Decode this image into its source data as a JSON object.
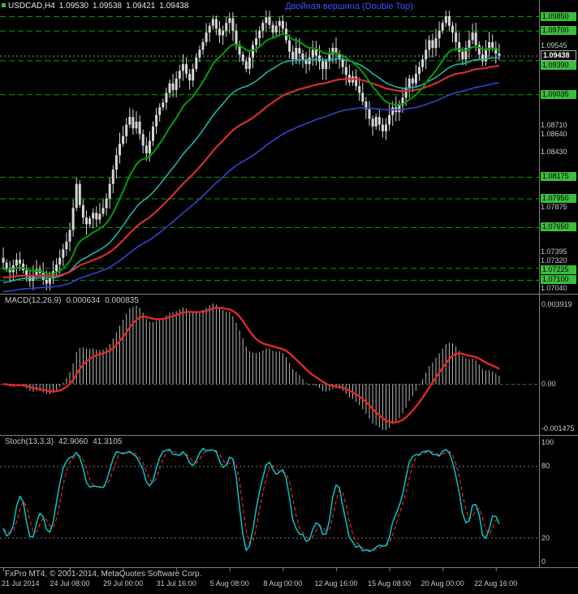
{
  "header": {
    "symbol": "USDCAD,H4",
    "open": "1.09530",
    "high": "1.09538",
    "low": "1.09421",
    "close": "1.09438",
    "annotation": "Двойная вершина (Double Top)"
  },
  "macd_header": {
    "label": "MACD(12,26,9)",
    "main": "0.000634",
    "signal": "0.000835"
  },
  "stoch_header": {
    "label": "Stoch(13,3,3)",
    "main": "42.9060",
    "signal": "41.3105"
  },
  "footer": {
    "copyright": "FxPro MT4, © 2001-2014, MetaQuotes Software Corp."
  },
  "colors": {
    "background": "#000000",
    "divider_silver": "#808080",
    "candle": "#D6D6D6",
    "level_green": "#00A000",
    "badge_green": "#3CBC3C",
    "text_silver": "#C8C8C8",
    "annotation_blue": "#3A52FC",
    "macd_hist": "#B9B9B9",
    "signal_red": "#E02828",
    "stoch_main": "#00C8C8",
    "bid_line": "#909090"
  },
  "price_axis": {
    "labels": [
      {
        "text": "1.09850",
        "value": 1.0985,
        "style": "level"
      },
      {
        "text": "1.09700",
        "value": 1.097,
        "style": "level"
      },
      {
        "text": "1.09545",
        "value": 1.09545,
        "style": "tick"
      },
      {
        "text": "1.09438",
        "value": 1.09438,
        "style": "current"
      },
      {
        "text": "1.09390",
        "value": 1.0939,
        "style": "level"
      },
      {
        "text": "1.09035",
        "value": 1.09035,
        "style": "level"
      },
      {
        "text": "1.08710",
        "value": 1.0871,
        "style": "tick"
      },
      {
        "text": "1.08640",
        "value": 1.0864,
        "style": "tick"
      },
      {
        "text": "1.08430",
        "value": 1.0843,
        "style": "tick"
      },
      {
        "text": "1.08175",
        "value": 1.08175,
        "style": "level"
      },
      {
        "text": "1.07950",
        "value": 1.0795,
        "style": "level"
      },
      {
        "text": "1.07875",
        "value": 1.07875,
        "style": "tick"
      },
      {
        "text": "1.07650",
        "value": 1.0765,
        "style": "level"
      },
      {
        "text": "1.07395",
        "value": 1.07395,
        "style": "tick"
      },
      {
        "text": "1.07320",
        "value": 1.0732,
        "style": "tick"
      },
      {
        "text": "1.07225",
        "value": 1.07225,
        "style": "level"
      },
      {
        "text": "1.07100",
        "value": 1.071,
        "style": "level"
      },
      {
        "text": "1.07040",
        "value": 1.0704,
        "style": "tick"
      }
    ]
  },
  "time_axis": {
    "labels": [
      {
        "label": "21 Jul 2014",
        "i": 0
      },
      {
        "label": "24 Jul 08:00",
        "i": 20
      },
      {
        "label": "29 Jul 00:00",
        "i": 36
      },
      {
        "label": "31 Jul 16:00",
        "i": 52
      },
      {
        "label": "5 Aug 08:00",
        "i": 68
      },
      {
        "label": "8 Aug 00:00",
        "i": 84
      },
      {
        "label": "12 Aug 16:00",
        "i": 100
      },
      {
        "label": "15 Aug 08:00",
        "i": 116
      },
      {
        "label": "20 Aug 00:00",
        "i": 132
      },
      {
        "label": "22 Aug 16:00",
        "i": 148
      }
    ]
  },
  "chart_data": [
    {
      "type": "candlestick",
      "title": "USDCAD,H4",
      "ylim": [
        1.0704,
        1.0985
      ],
      "current_bid": 1.09438,
      "support_resistance_levels": [
        1.0985,
        1.097,
        1.0939,
        1.09035,
        1.08175,
        1.0795,
        1.0765,
        1.07225,
        1.071
      ],
      "closes": [
        1.0728,
        1.0722,
        1.0718,
        1.0725,
        1.0731,
        1.0727,
        1.072,
        1.0713,
        1.0709,
        1.0714,
        1.0721,
        1.0717,
        1.071,
        1.0706,
        1.0712,
        1.0719,
        1.0726,
        1.0733,
        1.0742,
        1.075,
        1.0762,
        1.0785,
        1.081,
        1.0788,
        1.0775,
        1.0768,
        1.0774,
        1.078,
        1.0773,
        1.0779,
        1.0785,
        1.0795,
        1.081,
        1.0825,
        1.084,
        1.0852,
        1.086,
        1.0872,
        1.088,
        1.0868,
        1.0875,
        1.0862,
        1.085,
        1.0842,
        1.0855,
        1.087,
        1.0882,
        1.089,
        1.0895,
        1.0905,
        1.0915,
        1.0908,
        1.092,
        1.0928,
        1.0935,
        1.0925,
        1.0918,
        1.093,
        1.0942,
        1.095,
        1.0958,
        1.0968,
        1.0975,
        1.0982,
        1.0972,
        1.0965,
        1.097,
        1.0978,
        1.0983,
        1.097,
        1.0955,
        1.0945,
        1.0938,
        1.093,
        1.0942,
        1.0955,
        1.0962,
        1.097,
        1.0978,
        1.0984,
        1.0976,
        1.0968,
        1.0975,
        1.098,
        1.0972,
        1.096,
        1.0948,
        1.094,
        1.0952,
        1.0946,
        1.094,
        1.0935,
        1.0942,
        1.095,
        1.0944,
        1.0938,
        1.093,
        1.0938,
        1.0945,
        1.0952,
        1.0946,
        1.094,
        1.0932,
        1.0924,
        1.0916,
        1.0922,
        1.0912,
        1.0905,
        1.0896,
        1.0888,
        1.0878,
        1.087,
        1.088,
        1.0872,
        1.0865,
        1.0872,
        1.0882,
        1.089,
        1.0885,
        1.0892,
        1.09,
        1.091,
        1.092,
        1.0915,
        1.0925,
        1.0932,
        1.094,
        1.095,
        1.096,
        1.0952,
        1.0962,
        1.097,
        1.0978,
        1.0985,
        1.0975,
        1.0968,
        1.0958,
        1.0948,
        1.094,
        1.0952,
        1.096,
        1.0968,
        1.0955,
        1.0945,
        1.0938,
        1.095,
        1.0958,
        1.0952,
        1.0946,
        1.09438
      ],
      "moving_averages": [
        {
          "name": "ma-long",
          "color": "#3344CC",
          "period": 100,
          "seed": 1.0697,
          "width": 1.6
        },
        {
          "name": "ma-mid",
          "color": "#20B2AA",
          "period": 40,
          "seed": 1.0706,
          "width": 1.6
        },
        {
          "name": "ma-slow",
          "color": "#D32F2F",
          "period": 65,
          "seed": 1.0712,
          "width": 2.2
        },
        {
          "name": "ma-fast",
          "color": "#00A000",
          "period": 16,
          "seed": 1.072,
          "width": 2.0
        }
      ]
    },
    {
      "type": "bar",
      "subtype": "macd_histogram",
      "label": "MACD(12,26,9)",
      "params": [
        12,
        26,
        9
      ],
      "displayed_values": [
        0.000634,
        0.000835
      ],
      "axis_labels": [
        "0.003919",
        "0.00",
        "-0.001475"
      ]
    },
    {
      "type": "line",
      "subtype": "stochastic",
      "label": "Stoch(13,3,3)",
      "params": [
        13,
        3,
        3
      ],
      "displayed_values": [
        42.906,
        41.3105
      ],
      "axis_labels": [
        100,
        80,
        20,
        0
      ],
      "grid_levels": [
        80,
        20
      ]
    }
  ]
}
